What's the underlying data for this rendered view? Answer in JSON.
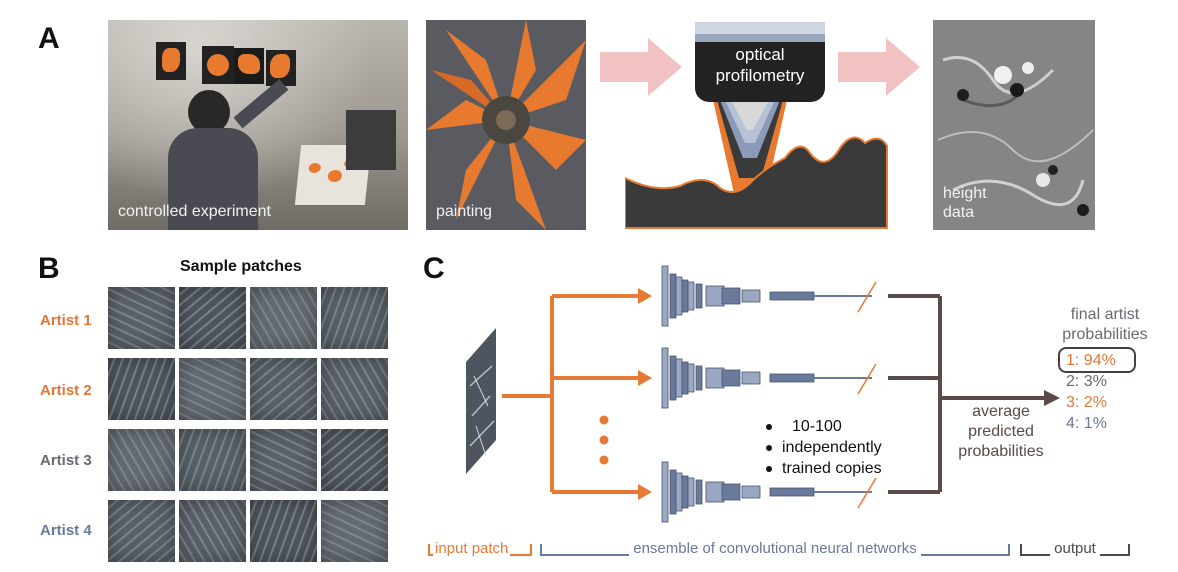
{
  "panel_a": {
    "letter": "A",
    "photo1_caption": "controlled experiment",
    "photo2_caption": "painting",
    "profilometer_label_line1": "optical",
    "profilometer_label_line2": "profilometry",
    "photo3_caption_line1": "height",
    "photo3_caption_line2": "data"
  },
  "panel_b": {
    "letter": "B",
    "title": "Sample patches",
    "artists": [
      "Artist 1",
      "Artist 2",
      "Artist 3",
      "Artist 4"
    ],
    "artist_colors": [
      "#e07838",
      "#e07838",
      "#6a6a70",
      "#6a7a9a"
    ]
  },
  "panel_c": {
    "letter": "C",
    "bullets": [
      "10-100",
      "independently",
      "trained copies"
    ],
    "average_line1": "average",
    "average_line2": "predicted",
    "average_line3": "probabilities",
    "final_line1": "final artist",
    "final_line2": "probabilities",
    "results": [
      "1: 94%",
      "2: 3%",
      "3: 2%",
      "4: 1%"
    ],
    "result_colors": [
      "#e07838",
      "#6a6a70",
      "#e07838",
      "#6a7a9a"
    ],
    "footer_input": "input patch",
    "footer_ensemble": "ensemble of convolutional neural networks",
    "footer_output": "output"
  },
  "colors": {
    "orange": "#e67a35",
    "dark_arrow": "#5a4a48",
    "pink_arrow": "#f2c2c2",
    "network_blue": "#8a9ab8"
  }
}
